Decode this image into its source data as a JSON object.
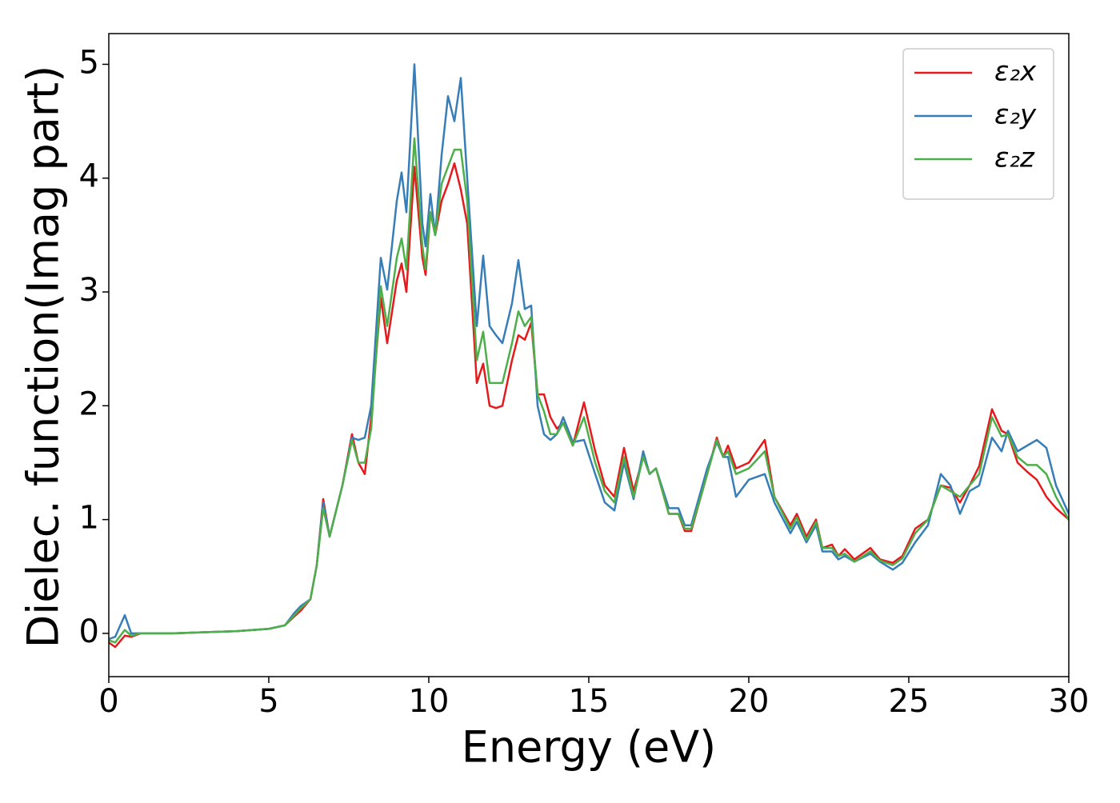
{
  "chart_data": {
    "type": "line",
    "xlabel": "Energy (eV)",
    "ylabel": "Dielec. function(Imag part)",
    "x": [
      0,
      0.2,
      0.5,
      0.7,
      1,
      2,
      3,
      4,
      5,
      5.5,
      5.8,
      6,
      6.3,
      6.5,
      6.7,
      6.9,
      7.3,
      7.6,
      7.8,
      8,
      8.2,
      8.5,
      8.7,
      9,
      9.15,
      9.3,
      9.55,
      9.8,
      9.9,
      10.05,
      10.2,
      10.4,
      10.6,
      10.8,
      11,
      11.2,
      11.5,
      11.7,
      11.9,
      12.1,
      12.3,
      12.6,
      12.8,
      13,
      13.2,
      13.4,
      13.6,
      13.8,
      14,
      14.2,
      14.5,
      14.85,
      15.2,
      15.5,
      15.8,
      16.1,
      16.4,
      16.7,
      16.9,
      17.1,
      17.5,
      17.8,
      18,
      18.2,
      18.5,
      18.7,
      19,
      19.2,
      19.35,
      19.6,
      20,
      20.5,
      20.8,
      21.3,
      21.5,
      21.8,
      22.1,
      22.3,
      22.6,
      22.8,
      23,
      23.3,
      23.8,
      24.1,
      24.5,
      24.8,
      25.2,
      25.6,
      26,
      26.3,
      26.6,
      26.9,
      27.2,
      27.6,
      27.9,
      28.1,
      28.4,
      28.7,
      29,
      29.3,
      29.6,
      30
    ],
    "series": [
      {
        "name": "ε₂x",
        "color": "#e41a1c",
        "values": [
          -0.08,
          -0.12,
          -0.02,
          -0.03,
          0,
          0,
          0.01,
          0.02,
          0.04,
          0.07,
          0.15,
          0.2,
          0.3,
          0.6,
          1.18,
          0.85,
          1.3,
          1.75,
          1.5,
          1.4,
          1.9,
          2.95,
          2.55,
          3.1,
          3.25,
          3,
          4.1,
          3.3,
          3.15,
          3.7,
          3.5,
          3.8,
          3.95,
          4.13,
          3.9,
          3.6,
          2.2,
          2.37,
          2,
          1.98,
          2,
          2.4,
          2.62,
          2.58,
          2.73,
          2.1,
          2.1,
          1.9,
          1.8,
          1.85,
          1.65,
          2.03,
          1.6,
          1.3,
          1.2,
          1.63,
          1.25,
          1.55,
          1.4,
          1.45,
          1.05,
          1.05,
          0.9,
          0.9,
          1.2,
          1.4,
          1.72,
          1.55,
          1.65,
          1.45,
          1.5,
          1.7,
          1.2,
          0.95,
          1.05,
          0.85,
          1,
          0.75,
          0.78,
          0.68,
          0.74,
          0.65,
          0.75,
          0.65,
          0.62,
          0.68,
          0.92,
          1,
          1.3,
          1.28,
          1.15,
          1.3,
          1.47,
          1.97,
          1.78,
          1.75,
          1.5,
          1.42,
          1.35,
          1.2,
          1.1,
          1
        ]
      },
      {
        "name": "ε₂y",
        "color": "#377eb8",
        "values": [
          -0.05,
          -0.03,
          0.16,
          0,
          0,
          0,
          0.01,
          0.02,
          0.04,
          0.07,
          0.18,
          0.24,
          0.3,
          0.6,
          1.15,
          0.85,
          1.3,
          1.72,
          1.7,
          1.72,
          2,
          3.3,
          3.02,
          3.8,
          4.05,
          3.7,
          5,
          3.6,
          3.4,
          3.86,
          3.5,
          4.2,
          4.72,
          4.5,
          4.88,
          4,
          2.7,
          3.32,
          2.7,
          2.62,
          2.55,
          2.9,
          3.28,
          2.85,
          2.88,
          2,
          1.75,
          1.7,
          1.75,
          1.9,
          1.68,
          1.7,
          1.4,
          1.15,
          1.08,
          1.5,
          1.18,
          1.6,
          1.4,
          1.45,
          1.1,
          1.1,
          0.95,
          0.95,
          1.25,
          1.45,
          1.68,
          1.55,
          1.55,
          1.2,
          1.35,
          1.4,
          1.15,
          0.88,
          0.98,
          0.8,
          0.95,
          0.72,
          0.72,
          0.65,
          0.68,
          0.63,
          0.7,
          0.63,
          0.56,
          0.62,
          0.8,
          0.95,
          1.4,
          1.3,
          1.05,
          1.25,
          1.3,
          1.72,
          1.6,
          1.78,
          1.6,
          1.65,
          1.7,
          1.63,
          1.3,
          1.05
        ]
      },
      {
        "name": "ε₂z",
        "color": "#4daf4a",
        "values": [
          -0.06,
          -0.08,
          0.03,
          -0.02,
          0,
          0,
          0.01,
          0.02,
          0.04,
          0.07,
          0.16,
          0.22,
          0.3,
          0.6,
          1.1,
          0.85,
          1.3,
          1.7,
          1.5,
          1.5,
          1.8,
          3.05,
          2.7,
          3.3,
          3.47,
          3.2,
          4.35,
          3.4,
          3.2,
          3.7,
          3.5,
          3.95,
          4.1,
          4.25,
          4.25,
          3.8,
          2.4,
          2.65,
          2.2,
          2.2,
          2.2,
          2.55,
          2.83,
          2.7,
          2.78,
          2.1,
          1.95,
          1.75,
          1.75,
          1.85,
          1.65,
          1.9,
          1.5,
          1.25,
          1.15,
          1.55,
          1.2,
          1.55,
          1.4,
          1.45,
          1.05,
          1.05,
          0.92,
          0.92,
          1.2,
          1.4,
          1.7,
          1.55,
          1.6,
          1.4,
          1.45,
          1.6,
          1.2,
          0.92,
          1.02,
          0.82,
          0.98,
          0.75,
          0.75,
          0.68,
          0.7,
          0.63,
          0.72,
          0.64,
          0.6,
          0.66,
          0.88,
          1,
          1.3,
          1.25,
          1.2,
          1.3,
          1.4,
          1.9,
          1.73,
          1.75,
          1.55,
          1.48,
          1.48,
          1.4,
          1.2,
          1
        ]
      }
    ],
    "xlim": [
      0,
      30
    ],
    "ylim": [
      -0.38,
      5.27
    ],
    "xticks": [
      0,
      5,
      10,
      15,
      20,
      25,
      30
    ],
    "yticks": [
      0,
      1,
      2,
      3,
      4,
      5
    ],
    "legend": "upper right"
  }
}
